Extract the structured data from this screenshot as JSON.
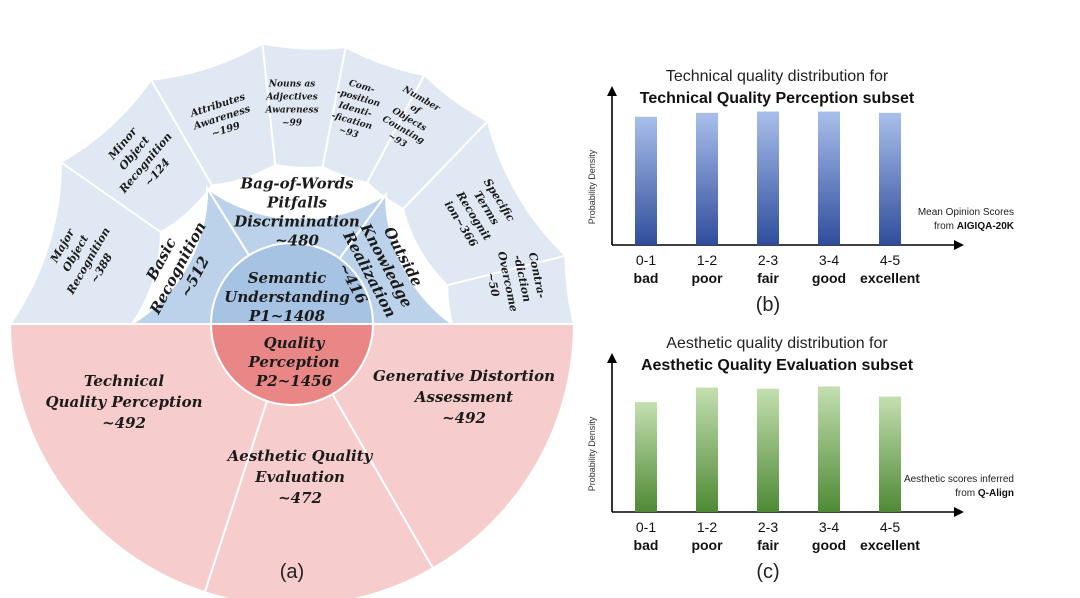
{
  "sunburst": {
    "caption": "(a)",
    "center_top": {
      "lines": [
        "Semantic",
        "Understanding",
        "P1~1408"
      ],
      "color": "#a7c3e3"
    },
    "center_bottom": {
      "lines": [
        "Quality",
        "Perception",
        "P2~1456"
      ],
      "color": "#e98686"
    },
    "p1_mid": [
      {
        "lines": [
          "Basic",
          "Recognition",
          "~512"
        ]
      },
      {
        "lines": [
          "Bag-of-Words",
          "Pitfalls",
          "Discrimination",
          "~480"
        ]
      },
      {
        "lines": [
          "Outside",
          "Knowledge",
          "Realization",
          "~416"
        ]
      }
    ],
    "p1_outer": [
      {
        "lines": [
          "Major",
          "Object",
          "Recognition",
          "~388"
        ]
      },
      {
        "lines": [
          "Minor",
          "Object",
          "Recognition",
          "~124"
        ]
      },
      {
        "lines": [
          "Attributes",
          "Awareness",
          "~199"
        ]
      },
      {
        "lines": [
          "Nouns as",
          "Adjectives",
          "Awareness",
          "~99"
        ]
      },
      {
        "lines": [
          "Com-",
          "-position",
          "Identi-",
          "-fication",
          "~93"
        ]
      },
      {
        "lines": [
          "Number",
          "of",
          "Objects",
          "Counting",
          "~93"
        ]
      },
      {
        "lines": [
          "Specific",
          "Terms",
          "Recognit",
          "ion~366"
        ]
      },
      {
        "lines": [
          "Contra-",
          "-diction",
          "Overcome",
          "~50"
        ]
      }
    ],
    "p2": [
      {
        "lines": [
          "Technical",
          "Quality Perception",
          "~492"
        ]
      },
      {
        "lines": [
          "Aesthetic Quality",
          "Evaluation",
          "~472"
        ]
      },
      {
        "lines": [
          "Generative Distortion",
          "Assessment",
          "~492"
        ]
      }
    ],
    "colors": {
      "blue_mid": "#bcd2ea",
      "blue_outer": "#dfe8f3",
      "pink": "#f6cccc"
    }
  },
  "chart_data": [
    {
      "type": "bar",
      "panel": "(b)",
      "title": "Technical quality distribution for",
      "title_bold": "Technical Quality Perception subset",
      "ylabel": "Probability Density",
      "categories": [
        "0-1",
        "1-2",
        "2-3",
        "3-4",
        "4-5"
      ],
      "category_names": [
        "bad",
        "poor",
        "fair",
        "good",
        "excellent"
      ],
      "values": [
        0.196,
        0.202,
        0.204,
        0.204,
        0.202
      ],
      "ylim": [
        0,
        0.24
      ],
      "annotation": [
        "Mean Opinion Scores",
        "from"
      ],
      "annotation_bold": "AIGIQA-20K",
      "color_top": "#a9bfeb",
      "color_bottom": "#2f4d9c"
    },
    {
      "type": "bar",
      "panel": "(c)",
      "title": "Aesthetic quality distribution for",
      "title_bold": "Aesthetic Quality Evaluation subset",
      "ylabel": "Probability Density",
      "categories": [
        "0-1",
        "1-2",
        "2-3",
        "3-4",
        "4-5"
      ],
      "category_names": [
        "bad",
        "poor",
        "fair",
        "good",
        "excellent"
      ],
      "values": [
        0.196,
        0.222,
        0.22,
        0.224,
        0.206
      ],
      "ylim": [
        0,
        0.28
      ],
      "annotation": [
        "Aesthetic scores inferred",
        "from"
      ],
      "annotation_bold": "Q-Align",
      "color_top": "#c4dfb0",
      "color_bottom": "#4e8a35"
    }
  ]
}
